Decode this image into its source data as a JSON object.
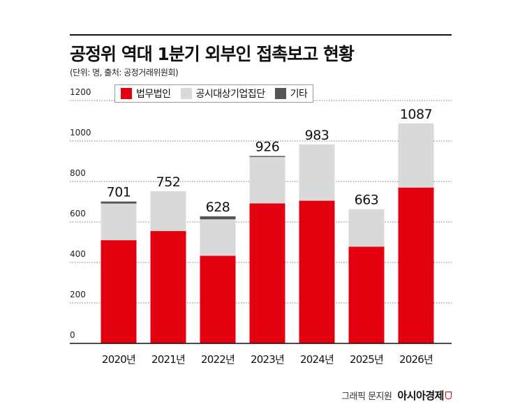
{
  "header": {
    "title": "공정위 역대 1분기 외부인 접촉보고 현황",
    "subtitle": "(단위: 명, 출처: 공정거래위원회)"
  },
  "footer": {
    "credit_text": "그래픽 문지원",
    "credit_brand": "아시아경제"
  },
  "colors": {
    "law_firm": "#e3000f",
    "public_company": "#d9d9d9",
    "other": "#555555"
  },
  "chart_data": {
    "type": "bar",
    "stacked": true,
    "categories": [
      "2020년",
      "2021년",
      "2022년",
      "2023년",
      "2024년",
      "2025년",
      "2026년"
    ],
    "series": [
      {
        "name": "법무법인",
        "values": [
          510,
          555,
          433,
          692,
          705,
          478,
          770
        ]
      },
      {
        "name": "공시대상기업집단",
        "values": [
          181,
          197,
          180,
          229,
          278,
          185,
          317
        ]
      },
      {
        "name": "기타",
        "values": [
          10,
          0,
          15,
          5,
          0,
          0,
          0
        ]
      }
    ],
    "totals": [
      701,
      752,
      628,
      926,
      983,
      663,
      1087
    ],
    "ylim": [
      0,
      1200
    ],
    "yticks": [
      0,
      200,
      400,
      600,
      800,
      1000,
      1200
    ],
    "grid": true,
    "legend_position": "top-left"
  }
}
